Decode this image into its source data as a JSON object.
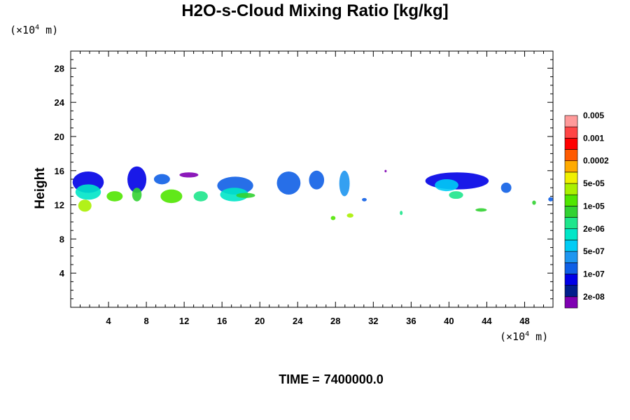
{
  "chart_data": {
    "type": "heatmap",
    "title": "H2O-s-Cloud Mixing Ratio [kg/kg]",
    "ylabel": "Height",
    "xlabel": "",
    "x_unit": "(×10⁴ m)",
    "y_unit": "(×10⁴ m)",
    "xlim": [
      0,
      51
    ],
    "ylim": [
      0,
      30
    ],
    "x_ticks": [
      4,
      8,
      12,
      16,
      20,
      24,
      28,
      32,
      36,
      40,
      44,
      48
    ],
    "y_ticks": [
      4,
      8,
      12,
      16,
      20,
      24,
      28
    ],
    "colorbar": {
      "colors": [
        "#7f00b2",
        "#001e8c",
        "#0000e6",
        "#0f5fe6",
        "#1e96f0",
        "#00ccf5",
        "#00e6c8",
        "#1ee68c",
        "#32d232",
        "#50e600",
        "#aaf000",
        "#f0f000",
        "#ffaa00",
        "#ff5a00",
        "#ff0000",
        "#ff4646",
        "#ff9a9a"
      ],
      "labels": [
        "2e-08",
        "1e-07",
        "5e-07",
        "2e-06",
        "1e-05",
        "5e-05",
        "0.0002",
        "0.001",
        "0.005"
      ]
    },
    "cloud_regions": [
      {
        "x": [
          0.2,
          3.5
        ],
        "y": [
          13.4,
          15.9
        ],
        "level": 2
      },
      {
        "x": [
          0.5,
          3.2
        ],
        "y": [
          12.6,
          14.4
        ],
        "level": 6
      },
      {
        "x": [
          0.8,
          2.2
        ],
        "y": [
          11.2,
          12.6
        ],
        "level": 10
      },
      {
        "x": [
          3.8,
          5.5
        ],
        "y": [
          12.4,
          13.6
        ],
        "level": 9
      },
      {
        "x": [
          6.0,
          8.0
        ],
        "y": [
          13.4,
          16.5
        ],
        "level": 2
      },
      {
        "x": [
          6.5,
          7.5
        ],
        "y": [
          12.4,
          14.0
        ],
        "level": 8
      },
      {
        "x": [
          8.8,
          10.5
        ],
        "y": [
          14.4,
          15.6
        ],
        "level": 3
      },
      {
        "x": [
          9.5,
          11.8
        ],
        "y": [
          12.2,
          13.8
        ],
        "level": 9
      },
      {
        "x": [
          11.5,
          13.5
        ],
        "y": [
          15.2,
          15.8
        ],
        "level": 0
      },
      {
        "x": [
          13.0,
          14.5
        ],
        "y": [
          12.4,
          13.6
        ],
        "level": 7
      },
      {
        "x": [
          15.5,
          19.3
        ],
        "y": [
          13.2,
          15.3
        ],
        "level": 3
      },
      {
        "x": [
          15.8,
          18.8
        ],
        "y": [
          12.4,
          14.0
        ],
        "level": 6
      },
      {
        "x": [
          17.5,
          19.5
        ],
        "y": [
          12.8,
          13.4
        ],
        "level": 8
      },
      {
        "x": [
          21.8,
          24.3
        ],
        "y": [
          13.2,
          15.9
        ],
        "level": 3
      },
      {
        "x": [
          25.2,
          26.8
        ],
        "y": [
          13.8,
          16.0
        ],
        "level": 3
      },
      {
        "x": [
          28.4,
          29.5
        ],
        "y": [
          13.0,
          16.0
        ],
        "level": 4
      },
      {
        "x": [
          27.5,
          28.0
        ],
        "y": [
          10.2,
          10.7
        ],
        "level": 9
      },
      {
        "x": [
          29.2,
          29.9
        ],
        "y": [
          10.5,
          11.0
        ],
        "level": 10
      },
      {
        "x": [
          30.8,
          31.3
        ],
        "y": [
          12.4,
          12.8
        ],
        "level": 3
      },
      {
        "x": [
          37.5,
          44.2
        ],
        "y": [
          13.8,
          15.8
        ],
        "level": 2
      },
      {
        "x": [
          38.5,
          41.0
        ],
        "y": [
          13.6,
          15.0
        ],
        "level": 5
      },
      {
        "x": [
          40.0,
          41.5
        ],
        "y": [
          12.7,
          13.6
        ],
        "level": 7
      },
      {
        "x": [
          42.8,
          44.0
        ],
        "y": [
          11.2,
          11.6
        ],
        "level": 8
      },
      {
        "x": [
          45.5,
          46.6
        ],
        "y": [
          13.4,
          14.6
        ],
        "level": 3
      },
      {
        "x": [
          34.8,
          35.1
        ],
        "y": [
          10.8,
          11.3
        ],
        "level": 7
      },
      {
        "x": [
          48.8,
          49.2
        ],
        "y": [
          12.0,
          12.5
        ],
        "level": 8
      },
      {
        "x": [
          50.5,
          51.0
        ],
        "y": [
          12.4,
          12.9
        ],
        "level": 3
      },
      {
        "x": [
          33.2,
          33.4
        ],
        "y": [
          15.8,
          16.1
        ],
        "level": 0
      }
    ]
  },
  "footer": {
    "time_label": "TIME =",
    "time_value": "7400000.0"
  }
}
